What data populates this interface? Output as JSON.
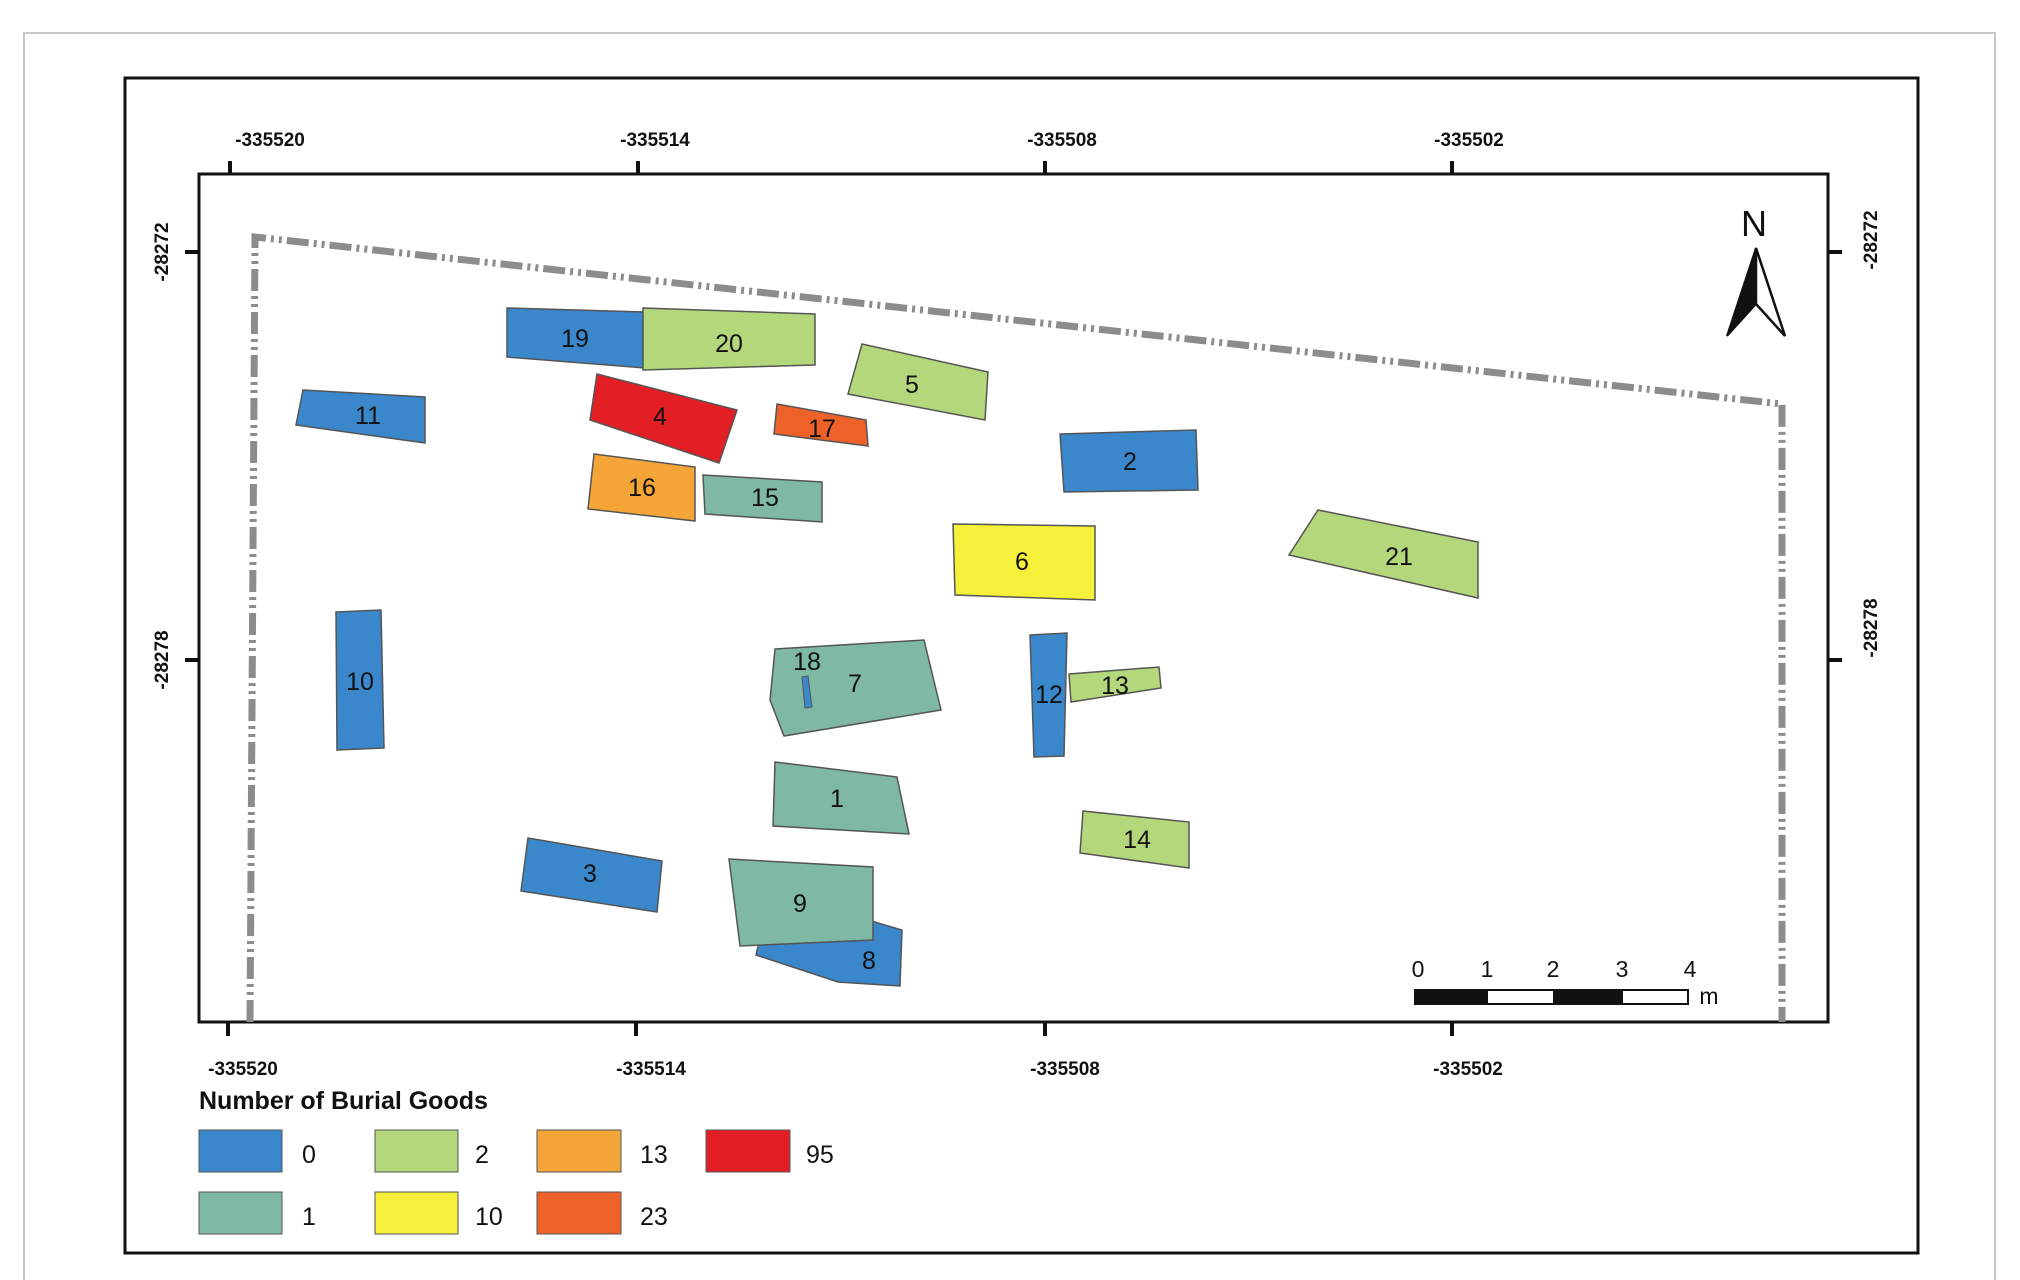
{
  "map": {
    "top_ticks": [
      "-335520",
      "-335514",
      "-335508",
      "-335502"
    ],
    "bottom_ticks": [
      "-335520",
      "-335514",
      "-335508",
      "-335502"
    ],
    "left_ticks": [
      "-28272",
      "-28278"
    ],
    "right_ticks": [
      "-28272",
      "-28278"
    ],
    "north_label": "N",
    "scale_bar": {
      "labels": [
        "0",
        "1",
        "2",
        "3",
        "4"
      ],
      "unit": "m"
    },
    "burials": [
      {
        "id": "1",
        "label": "1",
        "goods": "1"
      },
      {
        "id": "2",
        "label": "2",
        "goods": "0"
      },
      {
        "id": "3",
        "label": "3",
        "goods": "0"
      },
      {
        "id": "4",
        "label": "4",
        "goods": "95"
      },
      {
        "id": "5",
        "label": "5",
        "goods": "2"
      },
      {
        "id": "6",
        "label": "6",
        "goods": "10"
      },
      {
        "id": "7",
        "label": "7",
        "goods": "1"
      },
      {
        "id": "8",
        "label": "8",
        "goods": "0"
      },
      {
        "id": "9",
        "label": "9",
        "goods": "1"
      },
      {
        "id": "10",
        "label": "10",
        "goods": "0"
      },
      {
        "id": "11",
        "label": "11",
        "goods": "0"
      },
      {
        "id": "12",
        "label": "12",
        "goods": "0"
      },
      {
        "id": "13",
        "label": "13",
        "goods": "2"
      },
      {
        "id": "14",
        "label": "14",
        "goods": "2"
      },
      {
        "id": "15",
        "label": "15",
        "goods": "1"
      },
      {
        "id": "16",
        "label": "16",
        "goods": "13"
      },
      {
        "id": "17",
        "label": "17",
        "goods": "23"
      },
      {
        "id": "18",
        "label": "18",
        "goods": "0"
      },
      {
        "id": "19",
        "label": "19",
        "goods": "0"
      },
      {
        "id": "20",
        "label": "20",
        "goods": "2"
      },
      {
        "id": "21",
        "label": "21",
        "goods": "2"
      }
    ]
  },
  "legend": {
    "title": "Number of Burial Goods",
    "items": [
      {
        "label": "0",
        "color": "#3a87cc"
      },
      {
        "label": "1",
        "color": "#7fb8a4"
      },
      {
        "label": "2",
        "color": "#b5d77c"
      },
      {
        "label": "10",
        "color": "#f5f03a"
      },
      {
        "label": "13",
        "color": "#f5a537"
      },
      {
        "label": "23",
        "color": "#ee6229"
      },
      {
        "label": "95",
        "color": "#e31e25"
      }
    ]
  }
}
